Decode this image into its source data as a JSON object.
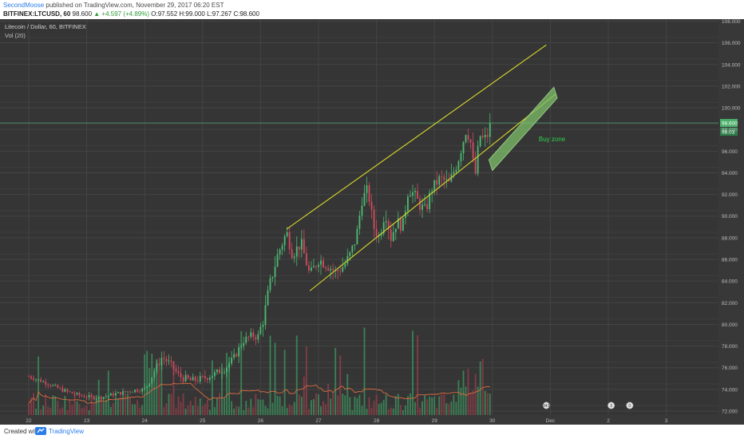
{
  "header": {
    "author": "SecondMoose",
    "published": "published on TradingView.com, November 29, 2017 06:20 EST",
    "symbol": "BITFINEX:LTCUSD, 60",
    "last": "98.600",
    "change": "+4.597 (+4.89%)",
    "ohlc": "O:97.552 H:99.000 L:97.267 C:98.600"
  },
  "footer": {
    "created": "Created with",
    "brand": "TradingView"
  },
  "chart_data": {
    "type": "candlestick",
    "title": "Litecoin / Dollar, 60, BITFINEX",
    "volume_label": "Vol (20)",
    "x_ticks": [
      "22",
      "23",
      "24",
      "25",
      "26",
      "27",
      "28",
      "29",
      "30",
      "Dec",
      "2",
      "3"
    ],
    "y_ticks": [
      "72.000",
      "74.000",
      "76.000",
      "78.000",
      "80.000",
      "82.000",
      "84.000",
      "86.000",
      "88.000",
      "90.000",
      "92.000",
      "94.000",
      "96.000",
      "98.000",
      "100.000",
      "102.000",
      "104.000",
      "106.000",
      "108.000"
    ],
    "ylim": [
      71.5,
      109
    ],
    "price_anchors": [
      [
        22.0,
        75.2
      ],
      [
        22.3,
        74.6
      ],
      [
        22.6,
        73.9
      ],
      [
        22.9,
        73.4
      ],
      [
        23.2,
        73.2
      ],
      [
        23.5,
        73.6
      ],
      [
        23.8,
        73.9
      ],
      [
        24.0,
        74.0
      ],
      [
        24.15,
        75.5
      ],
      [
        24.3,
        77.0
      ],
      [
        24.45,
        76.3
      ],
      [
        24.6,
        75.2
      ],
      [
        24.8,
        74.8
      ],
      [
        25.0,
        75.0
      ],
      [
        25.2,
        75.4
      ],
      [
        25.4,
        76.0
      ],
      [
        25.55,
        77.0
      ],
      [
        25.7,
        78.5
      ],
      [
        25.85,
        79.0
      ],
      [
        25.95,
        78.8
      ],
      [
        26.05,
        80.5
      ],
      [
        26.15,
        83.5
      ],
      [
        26.3,
        86.5
      ],
      [
        26.45,
        88.5
      ],
      [
        26.55,
        86.5
      ],
      [
        26.7,
        87.5
      ],
      [
        26.85,
        84.5
      ],
      [
        27.0,
        86.0
      ],
      [
        27.15,
        85.5
      ],
      [
        27.3,
        84.8
      ],
      [
        27.45,
        85.5
      ],
      [
        27.55,
        86.5
      ],
      [
        27.65,
        88.0
      ],
      [
        27.75,
        91.5
      ],
      [
        27.85,
        92.5
      ],
      [
        27.95,
        89.0
      ],
      [
        28.05,
        88.0
      ],
      [
        28.15,
        90.5
      ],
      [
        28.25,
        88.0
      ],
      [
        28.35,
        89.5
      ],
      [
        28.45,
        89.0
      ],
      [
        28.55,
        92.5
      ],
      [
        28.65,
        92.0
      ],
      [
        28.75,
        91.0
      ],
      [
        28.85,
        90.5
      ],
      [
        28.95,
        92.5
      ],
      [
        29.1,
        93.5
      ],
      [
        29.25,
        93.0
      ],
      [
        29.4,
        95.0
      ],
      [
        29.55,
        98.0
      ],
      [
        29.62,
        97.0
      ],
      [
        29.7,
        93.5
      ],
      [
        29.78,
        97.5
      ],
      [
        29.85,
        97.0
      ],
      [
        29.92,
        97.5
      ],
      [
        29.97,
        98.6
      ]
    ],
    "last_price": "98.600",
    "last_label_2": "98.03",
    "channel_upper": {
      "from": [
        26.45,
        88.8
      ],
      "to": [
        30.93,
        105.8
      ]
    },
    "channel_lower": {
      "from": [
        26.85,
        83.1
      ],
      "to": [
        31.1,
        101.3
      ]
    },
    "buy_zone": {
      "label": "Buy zone",
      "corners": [
        [
          29.94,
          95.2
        ],
        [
          31.06,
          101.9
        ],
        [
          31.12,
          100.9
        ],
        [
          30.0,
          94.2
        ]
      ]
    },
    "colors": {
      "background": "#353535",
      "grid": "#444444",
      "up": "#4db872",
      "down": "#cf4a5e",
      "vol_up": "#3b8c5b",
      "vol_down": "#8d3d49",
      "vol_ma": "#d86b40",
      "channel": "#d8d82a",
      "zone_fill": "#7fbf6a",
      "last_line": "#4a9a6c",
      "price_tag": "#4caf6a"
    },
    "event_badges": [
      {
        "day": 30.93,
        "text": "341",
        "icon": "news-badge-icon"
      },
      {
        "day": 32.05,
        "text": "3",
        "icon": "news-badge-icon"
      },
      {
        "day": 32.37,
        "text": "0",
        "icon": "flag-icon"
      }
    ]
  }
}
